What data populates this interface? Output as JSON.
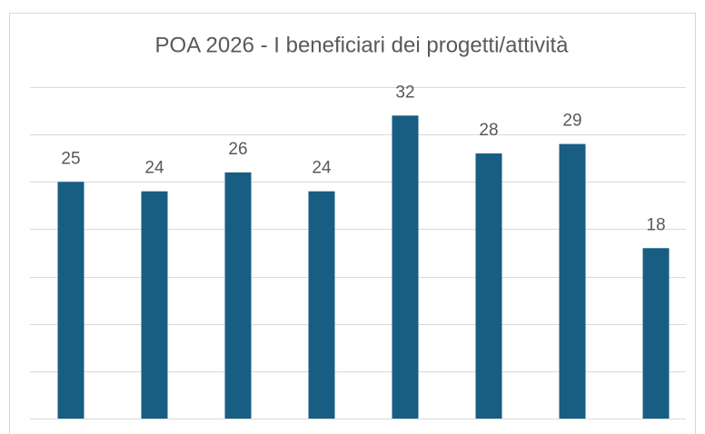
{
  "chart_data": {
    "type": "bar",
    "title": "POA 2026 - I beneficiari dei progetti/attività",
    "categories": [
      null,
      null,
      null,
      null,
      null,
      null,
      null,
      null
    ],
    "values": [
      25,
      24,
      26,
      24,
      32,
      28,
      29,
      18
    ],
    "color": "#175e82",
    "ylim": [
      0,
      35
    ],
    "yticks": [
      0,
      5,
      10,
      15,
      20,
      25,
      30,
      35
    ],
    "grid": true
  }
}
